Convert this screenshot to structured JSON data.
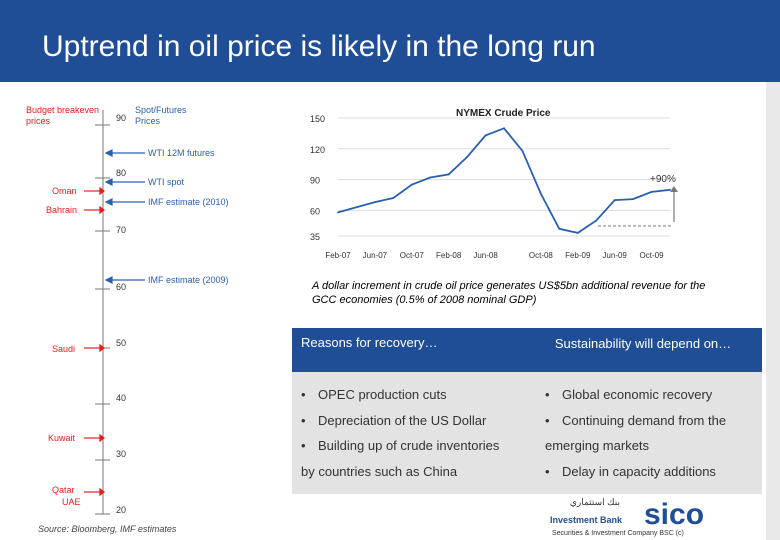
{
  "slide": {
    "title": "Uptrend in oil price is likely in the long run",
    "source": "Source: Bloomberg, IMF estimates",
    "company_footer": "Securities & Investment Company BSC (c)"
  },
  "scale": {
    "left_header": [
      "Budget breakeven",
      "prices"
    ],
    "right_header": [
      "Spot/Futures",
      "Prices"
    ],
    "ticks": [
      "90",
      "80",
      "70",
      "60",
      "50",
      "40",
      "30",
      "20"
    ],
    "left_labels": {
      "oman": "Oman",
      "bahrain": "Bahrain",
      "saudi": "Saudi",
      "kuwait": "Kuwait",
      "qatar": "Qatar",
      "uae": "UAE"
    },
    "right_labels": {
      "wti12m": "WTI 12M futures",
      "wtispot": "WTI spot",
      "imf2010": "IMF estimate (2010)",
      "imf2009": "IMF estimate (2009)"
    },
    "colors": {
      "red": "#e02020",
      "blue": "#2a5fb0",
      "gray": "#555555"
    }
  },
  "chart_data": {
    "type": "line",
    "title": "NYMEX Crude Price",
    "x": [
      "Feb-07",
      "Apr-07",
      "Jun-07",
      "Aug-07",
      "Oct-07",
      "Dec-07",
      "Feb-08",
      "Apr-08",
      "Jun-08",
      "Jul-08",
      "Aug-08",
      "Oct-08",
      "Dec-08",
      "Feb-09",
      "Apr-09",
      "Jun-09",
      "Aug-09",
      "Oct-09",
      "Nov-09"
    ],
    "xticks": [
      "Feb-07",
      "Jun-07",
      "Oct-07",
      "Feb-08",
      "Jun-08",
      "Oct-08",
      "Feb-09",
      "Jun-09",
      "Oct-09"
    ],
    "values": [
      58,
      63,
      68,
      72,
      85,
      92,
      95,
      112,
      133,
      140,
      118,
      76,
      42,
      38,
      50,
      70,
      71,
      78,
      80
    ],
    "ylim": [
      35,
      150
    ],
    "yticks": [
      "150",
      "120",
      "90",
      "60",
      "35"
    ],
    "annotation": "+90%",
    "line_color": "#2a5fb0"
  },
  "caption": "A dollar increment in crude oil price generates US$5bn additional revenue for the GCC economies (0.5% of 2008 nominal GDP)",
  "reasons": {
    "left_header": "Reasons for recovery…",
    "right_header": "Sustainability will depend on…",
    "left_items": [
      "OPEC production cuts",
      "Depreciation of the US Dollar",
      "Building up of crude inventories",
      "by countries such as China"
    ],
    "right_items": [
      "Global economic recovery",
      "Continuing demand from the",
      "emerging markets",
      "Delay in capacity additions"
    ]
  },
  "logo": {
    "bank_text": "Investment Bank",
    "brand": "sico",
    "arabic": "بنك استثماري"
  }
}
